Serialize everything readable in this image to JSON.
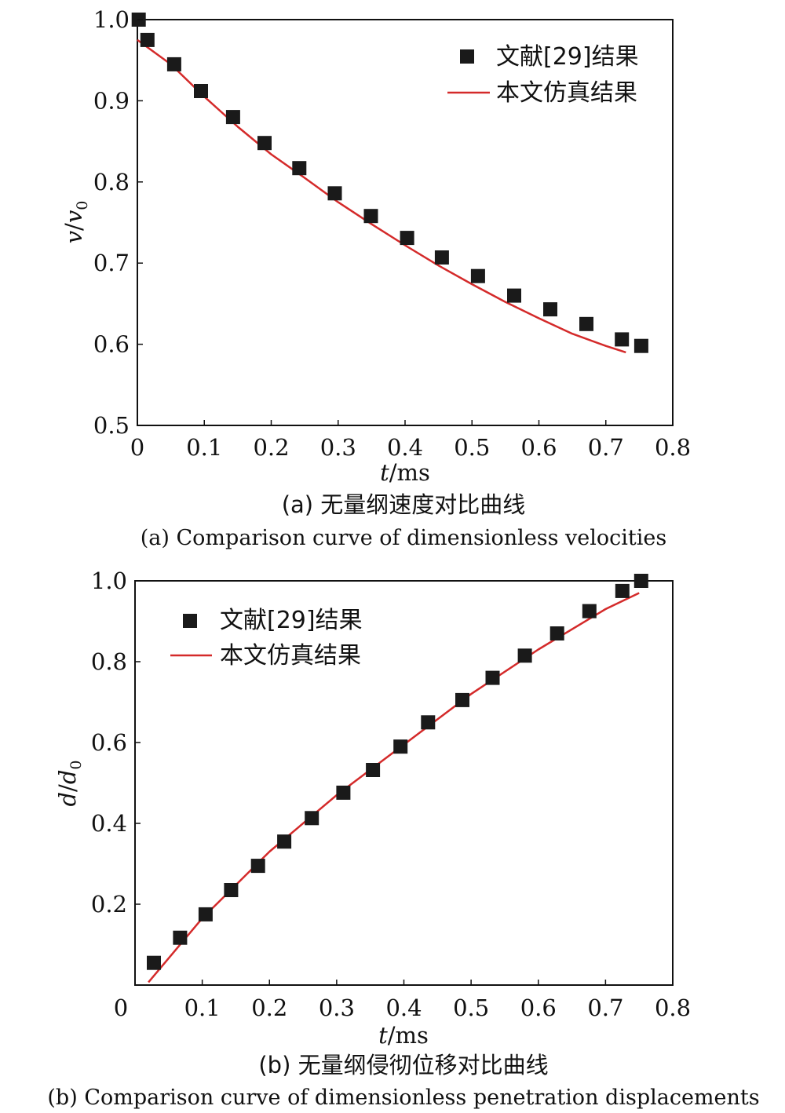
{
  "chart_data": [
    {
      "type": "scatter",
      "panel": "a",
      "xlabel": "t/ms",
      "ylabel": "v/v0",
      "xlim": [
        0,
        0.8
      ],
      "ylim": [
        0.5,
        1.0
      ],
      "xticks": [
        "0",
        "0.1",
        "0.2",
        "0.3",
        "0.4",
        "0.5",
        "0.6",
        "0.7",
        "0.8"
      ],
      "yticks": [
        "0.5",
        "0.6",
        "0.7",
        "0.8",
        "0.9",
        "1.0"
      ],
      "legend_position": "top-right",
      "series": [
        {
          "name": "文献[29]结果",
          "kind": "marker",
          "color": "#1a1a1a",
          "x": [
            0.002,
            0.015,
            0.055,
            0.095,
            0.143,
            0.19,
            0.242,
            0.295,
            0.349,
            0.403,
            0.455,
            0.509,
            0.563,
            0.617,
            0.671,
            0.724,
            0.753
          ],
          "y": [
            1.0,
            0.975,
            0.945,
            0.912,
            0.88,
            0.848,
            0.817,
            0.786,
            0.758,
            0.731,
            0.707,
            0.684,
            0.66,
            0.643,
            0.625,
            0.606,
            0.598
          ]
        },
        {
          "name": "本文仿真结果",
          "kind": "line",
          "color": "#d42a2a",
          "x": [
            0.0,
            0.05,
            0.1,
            0.15,
            0.2,
            0.25,
            0.3,
            0.35,
            0.4,
            0.45,
            0.5,
            0.55,
            0.6,
            0.65,
            0.7,
            0.73
          ],
          "y": [
            0.975,
            0.945,
            0.905,
            0.868,
            0.834,
            0.805,
            0.775,
            0.748,
            0.722,
            0.697,
            0.674,
            0.652,
            0.632,
            0.613,
            0.598,
            0.59
          ]
        }
      ]
    },
    {
      "type": "scatter",
      "panel": "b",
      "xlabel": "t/ms",
      "ylabel": "d/d0",
      "xlim": [
        0,
        0.8
      ],
      "ylim": [
        0,
        1.0
      ],
      "xticks": [
        "0",
        "0.1",
        "0.2",
        "0.3",
        "0.4",
        "0.5",
        "0.6",
        "0.7",
        "0.8"
      ],
      "yticks": [
        "0.2",
        "0.4",
        "0.6",
        "0.8",
        "1.0"
      ],
      "legend_position": "top-left",
      "series": [
        {
          "name": "文献[29]结果",
          "kind": "marker",
          "color": "#1a1a1a",
          "x": [
            0.028,
            0.067,
            0.105,
            0.143,
            0.183,
            0.222,
            0.263,
            0.31,
            0.354,
            0.395,
            0.436,
            0.487,
            0.532,
            0.58,
            0.628,
            0.676,
            0.725,
            0.753
          ],
          "y": [
            0.055,
            0.117,
            0.175,
            0.235,
            0.295,
            0.355,
            0.413,
            0.476,
            0.532,
            0.59,
            0.65,
            0.705,
            0.76,
            0.815,
            0.87,
            0.925,
            0.975,
            1.0
          ]
        },
        {
          "name": "本文仿真结果",
          "kind": "line",
          "color": "#d42a2a",
          "x": [
            0.02,
            0.1,
            0.2,
            0.3,
            0.4,
            0.5,
            0.6,
            0.7,
            0.75
          ],
          "y": [
            0.007,
            0.165,
            0.33,
            0.47,
            0.595,
            0.72,
            0.83,
            0.93,
            0.97
          ]
        }
      ]
    }
  ],
  "captions": {
    "a_zh": "(a) 无量纲速度对比曲线",
    "a_en": "(a) Comparison curve of dimensionless velocities",
    "b_zh": "(b) 无量纲侵彻位移对比曲线",
    "b_en": "(b)  Comparison curve of dimensionless penetration displacements"
  }
}
